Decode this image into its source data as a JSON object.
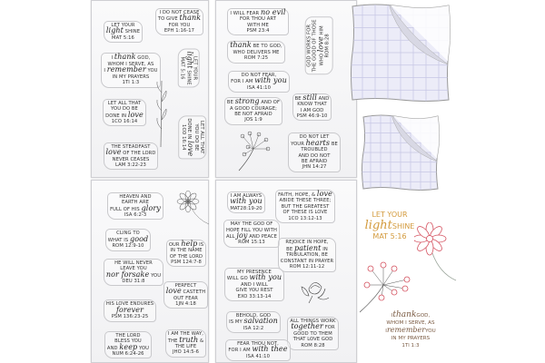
{
  "sheets": [
    {
      "stamps": [
        {
          "lines": [
            [
              "LET YOUR"
            ],
            [
              "light",
              "SHINE"
            ],
            [
              "MAT 5:16"
            ]
          ],
          "script": [
            "light"
          ]
        },
        {
          "lines": [
            [
              "I DO NOT CEASE"
            ],
            [
              "TO GIVE",
              "thank"
            ],
            [
              "FOR YOU"
            ],
            [
              "EPH 1:16-17"
            ]
          ],
          "script": [
            "thank"
          ]
        },
        {
          "lines": [
            [
              "I",
              "thank",
              "GOD,"
            ],
            [
              "WHOM I SERVE, AS"
            ],
            [
              "I",
              "remember",
              "YOU"
            ],
            [
              "IN MY PRAYERS"
            ],
            [
              "1TI 1:3"
            ]
          ],
          "script": [
            "thank",
            "remember"
          ]
        },
        {
          "lines": [
            [
              "LET YOUR"
            ],
            [
              "light",
              "SHINE"
            ],
            [
              "MAT 5:16"
            ]
          ],
          "script": [
            "light"
          ]
        },
        {
          "lines": [
            [
              "LET ALL THAT"
            ],
            [
              "YOU DO BE"
            ],
            [
              "DONE IN",
              "love"
            ],
            [
              "1CO 16:14"
            ]
          ],
          "script": [
            "love"
          ]
        },
        {
          "lines": [
            [
              "LET ALL THAT"
            ],
            [
              "YOU DO BE"
            ],
            [
              "DONE IN",
              "love"
            ],
            [
              "1CO 16:14"
            ]
          ],
          "script": [
            "love"
          ]
        },
        {
          "lines": [
            [
              "THE STEADFAST"
            ],
            [
              "love",
              "OF THE LORD"
            ],
            [
              "NEVER CEASES"
            ],
            [
              "LAM 3:22-23"
            ]
          ],
          "script": [
            "love"
          ]
        }
      ],
      "art": [
        "leaf-sprig-icon"
      ]
    },
    {
      "stamps": [
        {
          "lines": [
            [
              "I WILL FEAR",
              "no evil"
            ],
            [
              "FOR THOU ART"
            ],
            [
              "WITH ME"
            ],
            [
              "PSM 23:4"
            ]
          ],
          "script": [
            "no evil"
          ]
        },
        {
          "lines": [
            [
              "thank",
              "BE TO GOD,"
            ],
            [
              "WHO DELIVERS ME"
            ],
            [
              "ROM 7:25"
            ]
          ],
          "script": [
            "thank"
          ]
        },
        {
          "lines": [
            [
              "GOD WORKS FOR"
            ],
            [
              "THE GOOD OF THOSE"
            ],
            [
              "WHO",
              "love",
              "HIM"
            ],
            [
              "ROM 8:28"
            ]
          ],
          "script": [
            "love"
          ]
        },
        {
          "lines": [
            [
              "DO NOT FEAR,"
            ],
            [
              "FOR I AM",
              "with you"
            ],
            [
              "ISA 41:10"
            ]
          ],
          "script": [
            "with you"
          ]
        },
        {
          "lines": [
            [
              "BE",
              "strong",
              "AND OF"
            ],
            [
              "A GOOD COURAGE;"
            ],
            [
              "BE NOT AFRAID"
            ],
            [
              "JOS 1:9"
            ]
          ],
          "script": [
            "strong"
          ]
        },
        {
          "lines": [
            [
              "BE",
              "still",
              "AND"
            ],
            [
              "KNOW THAT"
            ],
            [
              "I AM GOD"
            ],
            [
              "PSM 46:9-10"
            ]
          ],
          "script": [
            "still"
          ]
        },
        {
          "lines": [
            [
              "DO NOT LET"
            ],
            [
              "YOUR",
              "hearts",
              "BE"
            ],
            [
              "TROUBLED"
            ],
            [
              "AND DO NOT"
            ],
            [
              "BE AFRAID"
            ],
            [
              "JHN 14:27"
            ]
          ],
          "script": [
            "hearts"
          ]
        }
      ],
      "art": [
        "dandelion-icon"
      ]
    },
    {
      "stamps": [
        {
          "lines": [
            [
              "HEAVEN AND"
            ],
            [
              "EARTH ARE"
            ],
            [
              "FULL OF HIS",
              "glory"
            ],
            [
              "ISA 6:2-3"
            ]
          ],
          "script": [
            "glory"
          ]
        },
        {
          "lines": [
            [
              "CLING TO"
            ],
            [
              "WHAT IS",
              "good"
            ],
            [
              "ROM 12:9-10"
            ]
          ],
          "script": [
            "good"
          ]
        },
        {
          "lines": [
            [
              "OUR",
              "help",
              "IS"
            ],
            [
              "IN THE NAME"
            ],
            [
              "OF THE LORD"
            ],
            [
              "PSM 124:7-8"
            ]
          ],
          "script": [
            "help"
          ]
        },
        {
          "lines": [
            [
              "HE WILL NEVER"
            ],
            [
              "LEAVE YOU"
            ],
            [
              "nor forsake",
              "YOU"
            ],
            [
              "DEU 31:8"
            ]
          ],
          "script": [
            "nor forsake"
          ]
        },
        {
          "lines": [
            [
              "PERFECT"
            ],
            [
              "love",
              "CASTETH"
            ],
            [
              "OUT FEAR"
            ],
            [
              "1JN 4:18"
            ]
          ],
          "script": [
            "love"
          ]
        },
        {
          "lines": [
            [
              "HIS LOVE ENDURES"
            ],
            [
              "forever"
            ],
            [
              "PSM 136:23-25"
            ]
          ],
          "script": [
            "forever"
          ]
        },
        {
          "lines": [
            [
              "THE LORD"
            ],
            [
              "BLESS YOU"
            ],
            [
              "AND",
              "keep",
              "YOU"
            ],
            [
              "NUM 6:24-26"
            ]
          ],
          "script": [
            "keep"
          ]
        },
        {
          "lines": [
            [
              "I AM THE WAY,"
            ],
            [
              "THE",
              "truth",
              "&"
            ],
            [
              "THE LIFE"
            ],
            [
              "JHO 14:5-6"
            ]
          ],
          "script": [
            "truth"
          ]
        }
      ],
      "art": [
        "flower-icon"
      ]
    },
    {
      "stamps": [
        {
          "lines": [
            [
              "I AM ALWAYS"
            ],
            [
              "with you"
            ],
            [
              "MAT28:19-20"
            ]
          ],
          "script": [
            "with you"
          ]
        },
        {
          "lines": [
            [
              "FAITH, HOPE, &",
              "love"
            ],
            [
              "ABIDE THESE THREE;"
            ],
            [
              "BUT THE GREATEST"
            ],
            [
              "OF THESE IS LOVE"
            ],
            [
              "1CO 13:12-13"
            ]
          ],
          "script": [
            "love"
          ]
        },
        {
          "lines": [
            [
              "MAY THE GOD OF"
            ],
            [
              "HOPE FILL YOU WITH"
            ],
            [
              "ALL",
              "joy",
              "AND PEACE"
            ],
            [
              "ROM 15:13"
            ]
          ],
          "script": [
            "joy"
          ]
        },
        {
          "lines": [
            [
              "REJOICE IN HOPE,"
            ],
            [
              "BE",
              "patient",
              "IN"
            ],
            [
              "TRIBULATION, BE"
            ],
            [
              "CONSTANT IN PRAYER"
            ],
            [
              "ROM 12:11-12"
            ]
          ],
          "script": [
            "patient"
          ]
        },
        {
          "lines": [
            [
              "MY PRESENCE"
            ],
            [
              "WILL GO",
              "with you"
            ],
            [
              "AND I WILL"
            ],
            [
              "GIVE YOU REST"
            ],
            [
              "EXO 33:13-14"
            ]
          ],
          "script": [
            "with you"
          ]
        },
        {
          "lines": [
            [
              "BEHOLD, GOD"
            ],
            [
              "IS MY",
              "salvation"
            ],
            [
              "ISA 12:2"
            ]
          ],
          "script": [
            "salvation"
          ]
        },
        {
          "lines": [
            [
              "ALL THINGS WORK"
            ],
            [
              "together",
              "FOR"
            ],
            [
              "GOOD TO THEM"
            ],
            [
              "THAT LOVE GOD"
            ],
            [
              "ROM 8:28"
            ]
          ],
          "script": [
            "together"
          ]
        },
        {
          "lines": [
            [
              "FEAR THOU NOT,"
            ],
            [
              "FOR I AM",
              "with thee"
            ],
            [
              "ISA 41:10"
            ]
          ],
          "script": [
            "with thee"
          ]
        }
      ],
      "art": [
        "rose-icon"
      ]
    }
  ],
  "acrylic_blocks": [
    "large-acrylic-block",
    "small-acrylic-block"
  ],
  "sample_prints": {
    "light": {
      "lines": [
        "LET YOUR",
        "light",
        "SHINE",
        "MAT 5:16"
      ],
      "color": "#d39a3c"
    },
    "thank": {
      "lines": [
        "I",
        "thank",
        "GOD,",
        "WHOM I SERVE, AS",
        "I",
        "remember",
        "YOU",
        "IN MY PRAYERS",
        "1Ti 1:3"
      ],
      "color": "#7a5a42"
    },
    "flower_color": "#d4505e",
    "stem_color": "#9aa59a"
  }
}
